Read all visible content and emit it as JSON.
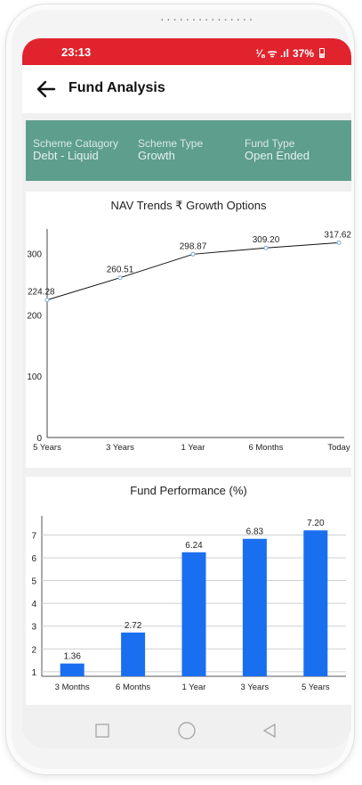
{
  "device": {
    "speaker_dots": "..............."
  },
  "status_bar": {
    "time": "23:13",
    "battery": "37%",
    "icons": "⅛ ᯤ .ıl"
  },
  "appbar": {
    "title": "Fund Analysis"
  },
  "scheme_info": [
    {
      "label": "Scheme Catagory",
      "value": "Debt - Liquid"
    },
    {
      "label": "Scheme Type",
      "value": "Growth"
    },
    {
      "label": "Fund Type",
      "value": "Open Ended"
    }
  ],
  "nav_card": {
    "title": "NAV Trends ₹ Growth Options"
  },
  "perf_card": {
    "title": "Fund Performance (%)"
  },
  "chart_data": [
    {
      "type": "line",
      "title": "NAV Trends ₹ Growth Options",
      "categories": [
        "5 Years",
        "3 Years",
        "1 Year",
        "6 Months",
        "Today"
      ],
      "values": [
        224.28,
        260.51,
        298.87,
        309.2,
        317.62
      ],
      "value_labels": [
        "224.28",
        "260.51",
        "298.87",
        "309.20",
        "317.62"
      ],
      "y_ticks": [
        "0",
        "100",
        "200",
        "300"
      ],
      "ylim": [
        0,
        340
      ],
      "grid": false,
      "line_color": "#111111",
      "point_color": "#7aa7d8"
    },
    {
      "type": "bar",
      "title": "Fund Performance (%)",
      "categories": [
        "3 Months",
        "6 Months",
        "1 Year",
        "3 Years",
        "5 Years"
      ],
      "values": [
        1.36,
        2.72,
        6.24,
        6.83,
        7.2
      ],
      "value_labels": [
        "1.36",
        "2.72",
        "6.24",
        "6.83",
        "7.20"
      ],
      "y_ticks": [
        "1",
        "2",
        "3",
        "4",
        "5",
        "6",
        "7"
      ],
      "ylim": [
        0.8,
        7.6
      ],
      "grid": true,
      "bar_color": "#1a6ff0"
    }
  ],
  "navbar": {
    "icons": [
      "recents-icon",
      "home-icon",
      "back-triangle-icon"
    ]
  }
}
